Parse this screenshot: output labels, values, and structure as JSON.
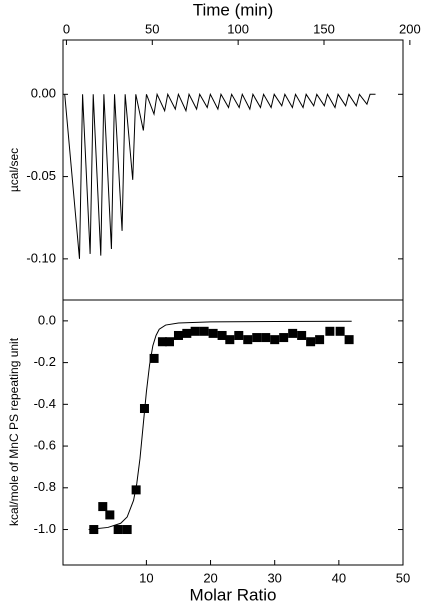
{
  "chart_data": [
    {
      "type": "line",
      "x_label": "Time (min)",
      "y_label": "µcal/sec",
      "color": "#000000",
      "x": [
        -1,
        7.6,
        9.4,
        13.8,
        15.6,
        20.0,
        21.8,
        26.2,
        28.0,
        32.4,
        34.2,
        38.6,
        40.4,
        44.8,
        46.6,
        51.0,
        52.8,
        57.2,
        59.0,
        63.4,
        65.2,
        69.6,
        71.4,
        75.8,
        77.6,
        82.0,
        83.8,
        88.2,
        90.0,
        94.4,
        96.2,
        100.6,
        102.4,
        106.8,
        108.6,
        113.0,
        114.8,
        119.2,
        121.0,
        125.4,
        127.2,
        131.6,
        133.4,
        137.8,
        139.6,
        144.0,
        145.8,
        150.2,
        152.0,
        156.4,
        158.2,
        162.6,
        164.4,
        168.8,
        170.6,
        175.0,
        176.8,
        180
      ],
      "values": [
        0,
        -0.1,
        0,
        -0.097,
        0,
        -0.098,
        0,
        -0.094,
        0,
        -0.083,
        0,
        -0.052,
        0,
        -0.022,
        0,
        -0.012,
        0,
        -0.01,
        0,
        -0.009,
        0,
        -0.01,
        0,
        -0.009,
        0,
        -0.008,
        0,
        -0.009,
        0,
        -0.008,
        0,
        -0.008,
        0,
        -0.009,
        0,
        -0.008,
        0,
        -0.008,
        0,
        -0.007,
        0,
        -0.008,
        0,
        -0.008,
        0,
        -0.007,
        0,
        -0.007,
        0,
        -0.008,
        0,
        -0.007,
        0,
        -0.007,
        0,
        -0.006,
        0,
        0
      ],
      "xlim": [
        -2,
        196
      ],
      "xticks": [
        0,
        50,
        100,
        150,
        200
      ],
      "ylim": [
        -0.125,
        0.033
      ],
      "yticks": [
        {
          "value": 0,
          "label": "0.00"
        },
        {
          "value": -0.05,
          "label": "-0.05"
        },
        {
          "value": -0.1,
          "label": "-0.10"
        }
      ]
    },
    {
      "type": "scatter",
      "x_label": "Molar Ratio",
      "y_label": "kcal/mole of MnC PS repeating unit",
      "series": [
        {
          "style": "marker",
          "color": "#000000",
          "x": [
            1.8,
            3.2,
            4.3,
            5.6,
            7.0,
            8.4,
            9.7,
            11.2,
            12.5,
            13.6,
            15.0,
            16.3,
            17.6,
            19.0,
            20.4,
            21.8,
            23.0,
            24.4,
            25.8,
            27.2,
            28.6,
            30.0,
            31.4,
            32.8,
            34.2,
            35.6,
            37.0,
            38.6,
            40.2,
            41.6
          ],
          "values": [
            -1.0,
            -0.89,
            -0.93,
            -1.0,
            -1.0,
            -0.81,
            -0.42,
            -0.18,
            -0.1,
            -0.1,
            -0.07,
            -0.06,
            -0.05,
            -0.05,
            -0.06,
            -0.07,
            -0.09,
            -0.07,
            -0.09,
            -0.08,
            -0.08,
            -0.09,
            -0.08,
            -0.06,
            -0.07,
            -0.1,
            -0.09,
            -0.05,
            -0.05,
            -0.09
          ]
        },
        {
          "style": "line",
          "color": "#000000",
          "x": [
            1,
            4,
            6,
            7,
            8,
            8.5,
            9,
            9.5,
            10,
            10.5,
            11,
            11.5,
            12,
            13,
            15,
            20,
            30,
            42
          ],
          "values": [
            -1.0,
            -0.99,
            -0.97,
            -0.94,
            -0.86,
            -0.78,
            -0.66,
            -0.5,
            -0.34,
            -0.21,
            -0.12,
            -0.07,
            -0.04,
            -0.02,
            -0.01,
            -0.005,
            -0.003,
            -0.002
          ]
        }
      ],
      "xlim": [
        -3,
        50
      ],
      "xticks": [
        10,
        20,
        30,
        40,
        50
      ],
      "ylim": [
        -1.17,
        0.1
      ],
      "yticks": [
        {
          "value": 0,
          "label": "0.0"
        },
        {
          "value": -0.2,
          "label": "-0.2"
        },
        {
          "value": -0.4,
          "label": "-0.4"
        },
        {
          "value": -0.6,
          "label": "-0.6"
        },
        {
          "value": -0.8,
          "label": "-0.8"
        },
        {
          "value": -1.0,
          "label": "-1.0"
        }
      ]
    }
  ]
}
